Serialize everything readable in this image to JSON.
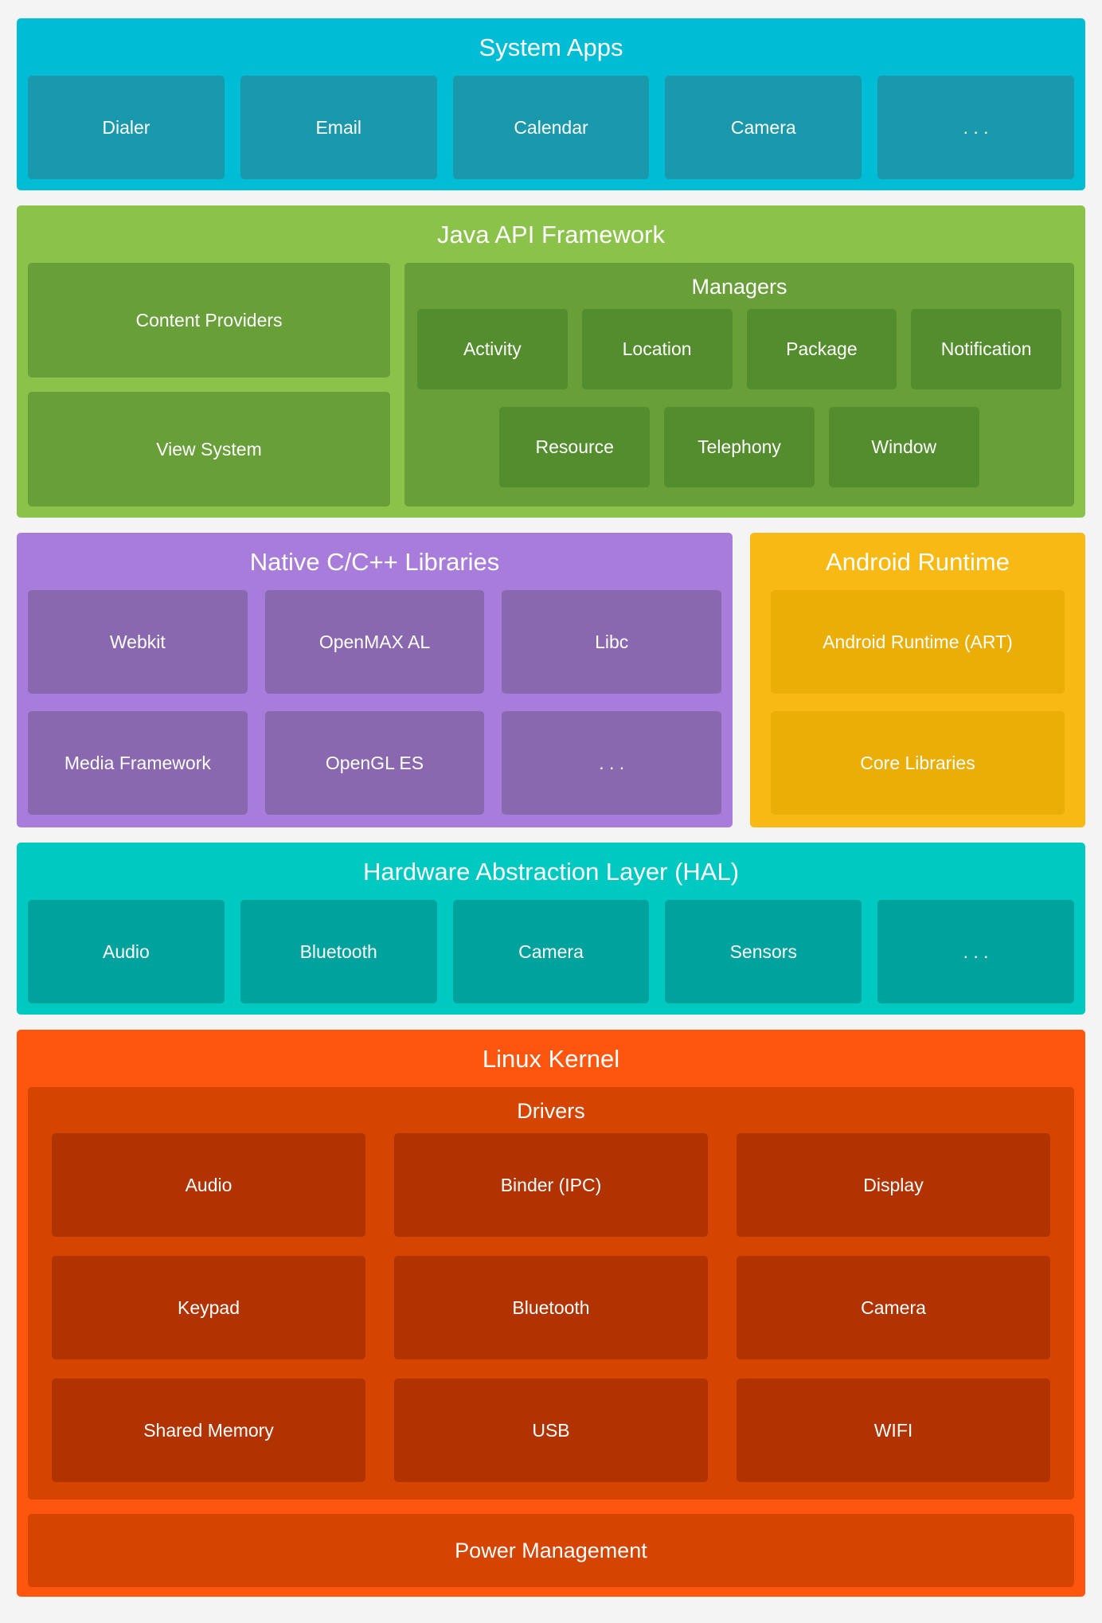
{
  "colors": {
    "page_bg": "#f4f4f4",
    "text": "#ffffff",
    "system_apps_bg": "#00bcd4",
    "system_apps_box": "#1a98ac",
    "java_api_bg": "#8bc34a",
    "java_api_box": "#689f38",
    "java_api_subbox": "#538d2e",
    "native_libs_bg": "#a87cda",
    "native_libs_box": "#8a68b0",
    "android_runtime_bg": "#f9b915",
    "android_runtime_box": "#ebae06",
    "hal_bg": "#00c9c2",
    "hal_box": "#00a29d",
    "linux_kernel_bg": "#fe560e",
    "linux_kernel_container": "#d54400",
    "linux_kernel_box": "#b23302"
  },
  "sections": {
    "system_apps": {
      "title": "System Apps",
      "boxes": [
        "Dialer",
        "Email",
        "Calendar",
        "Camera",
        ". . ."
      ]
    },
    "java_api": {
      "title": "Java API Framework",
      "left_boxes": [
        "Content Providers",
        "View System"
      ],
      "managers": {
        "title": "Managers",
        "row1": [
          "Activity",
          "Location",
          "Package",
          "Notification"
        ],
        "row2": [
          "Resource",
          "Telephony",
          "Window"
        ]
      }
    },
    "native_libs": {
      "title": "Native C/C++ Libraries",
      "row1": [
        "Webkit",
        "OpenMAX AL",
        "Libc"
      ],
      "row2": [
        "Media Framework",
        "OpenGL ES",
        ". . ."
      ]
    },
    "android_runtime": {
      "title": "Android Runtime",
      "boxes": [
        "Android Runtime (ART)",
        "Core Libraries"
      ]
    },
    "hal": {
      "title": "Hardware Abstraction Layer (HAL)",
      "boxes": [
        "Audio",
        "Bluetooth",
        "Camera",
        "Sensors",
        ". . ."
      ]
    },
    "linux_kernel": {
      "title": "Linux Kernel",
      "drivers": {
        "title": "Drivers",
        "rows": [
          [
            "Audio",
            "Binder (IPC)",
            "Display"
          ],
          [
            "Keypad",
            "Bluetooth",
            "Camera"
          ],
          [
            "Shared Memory",
            "USB",
            "WIFI"
          ]
        ]
      },
      "power_management": "Power Management"
    }
  }
}
